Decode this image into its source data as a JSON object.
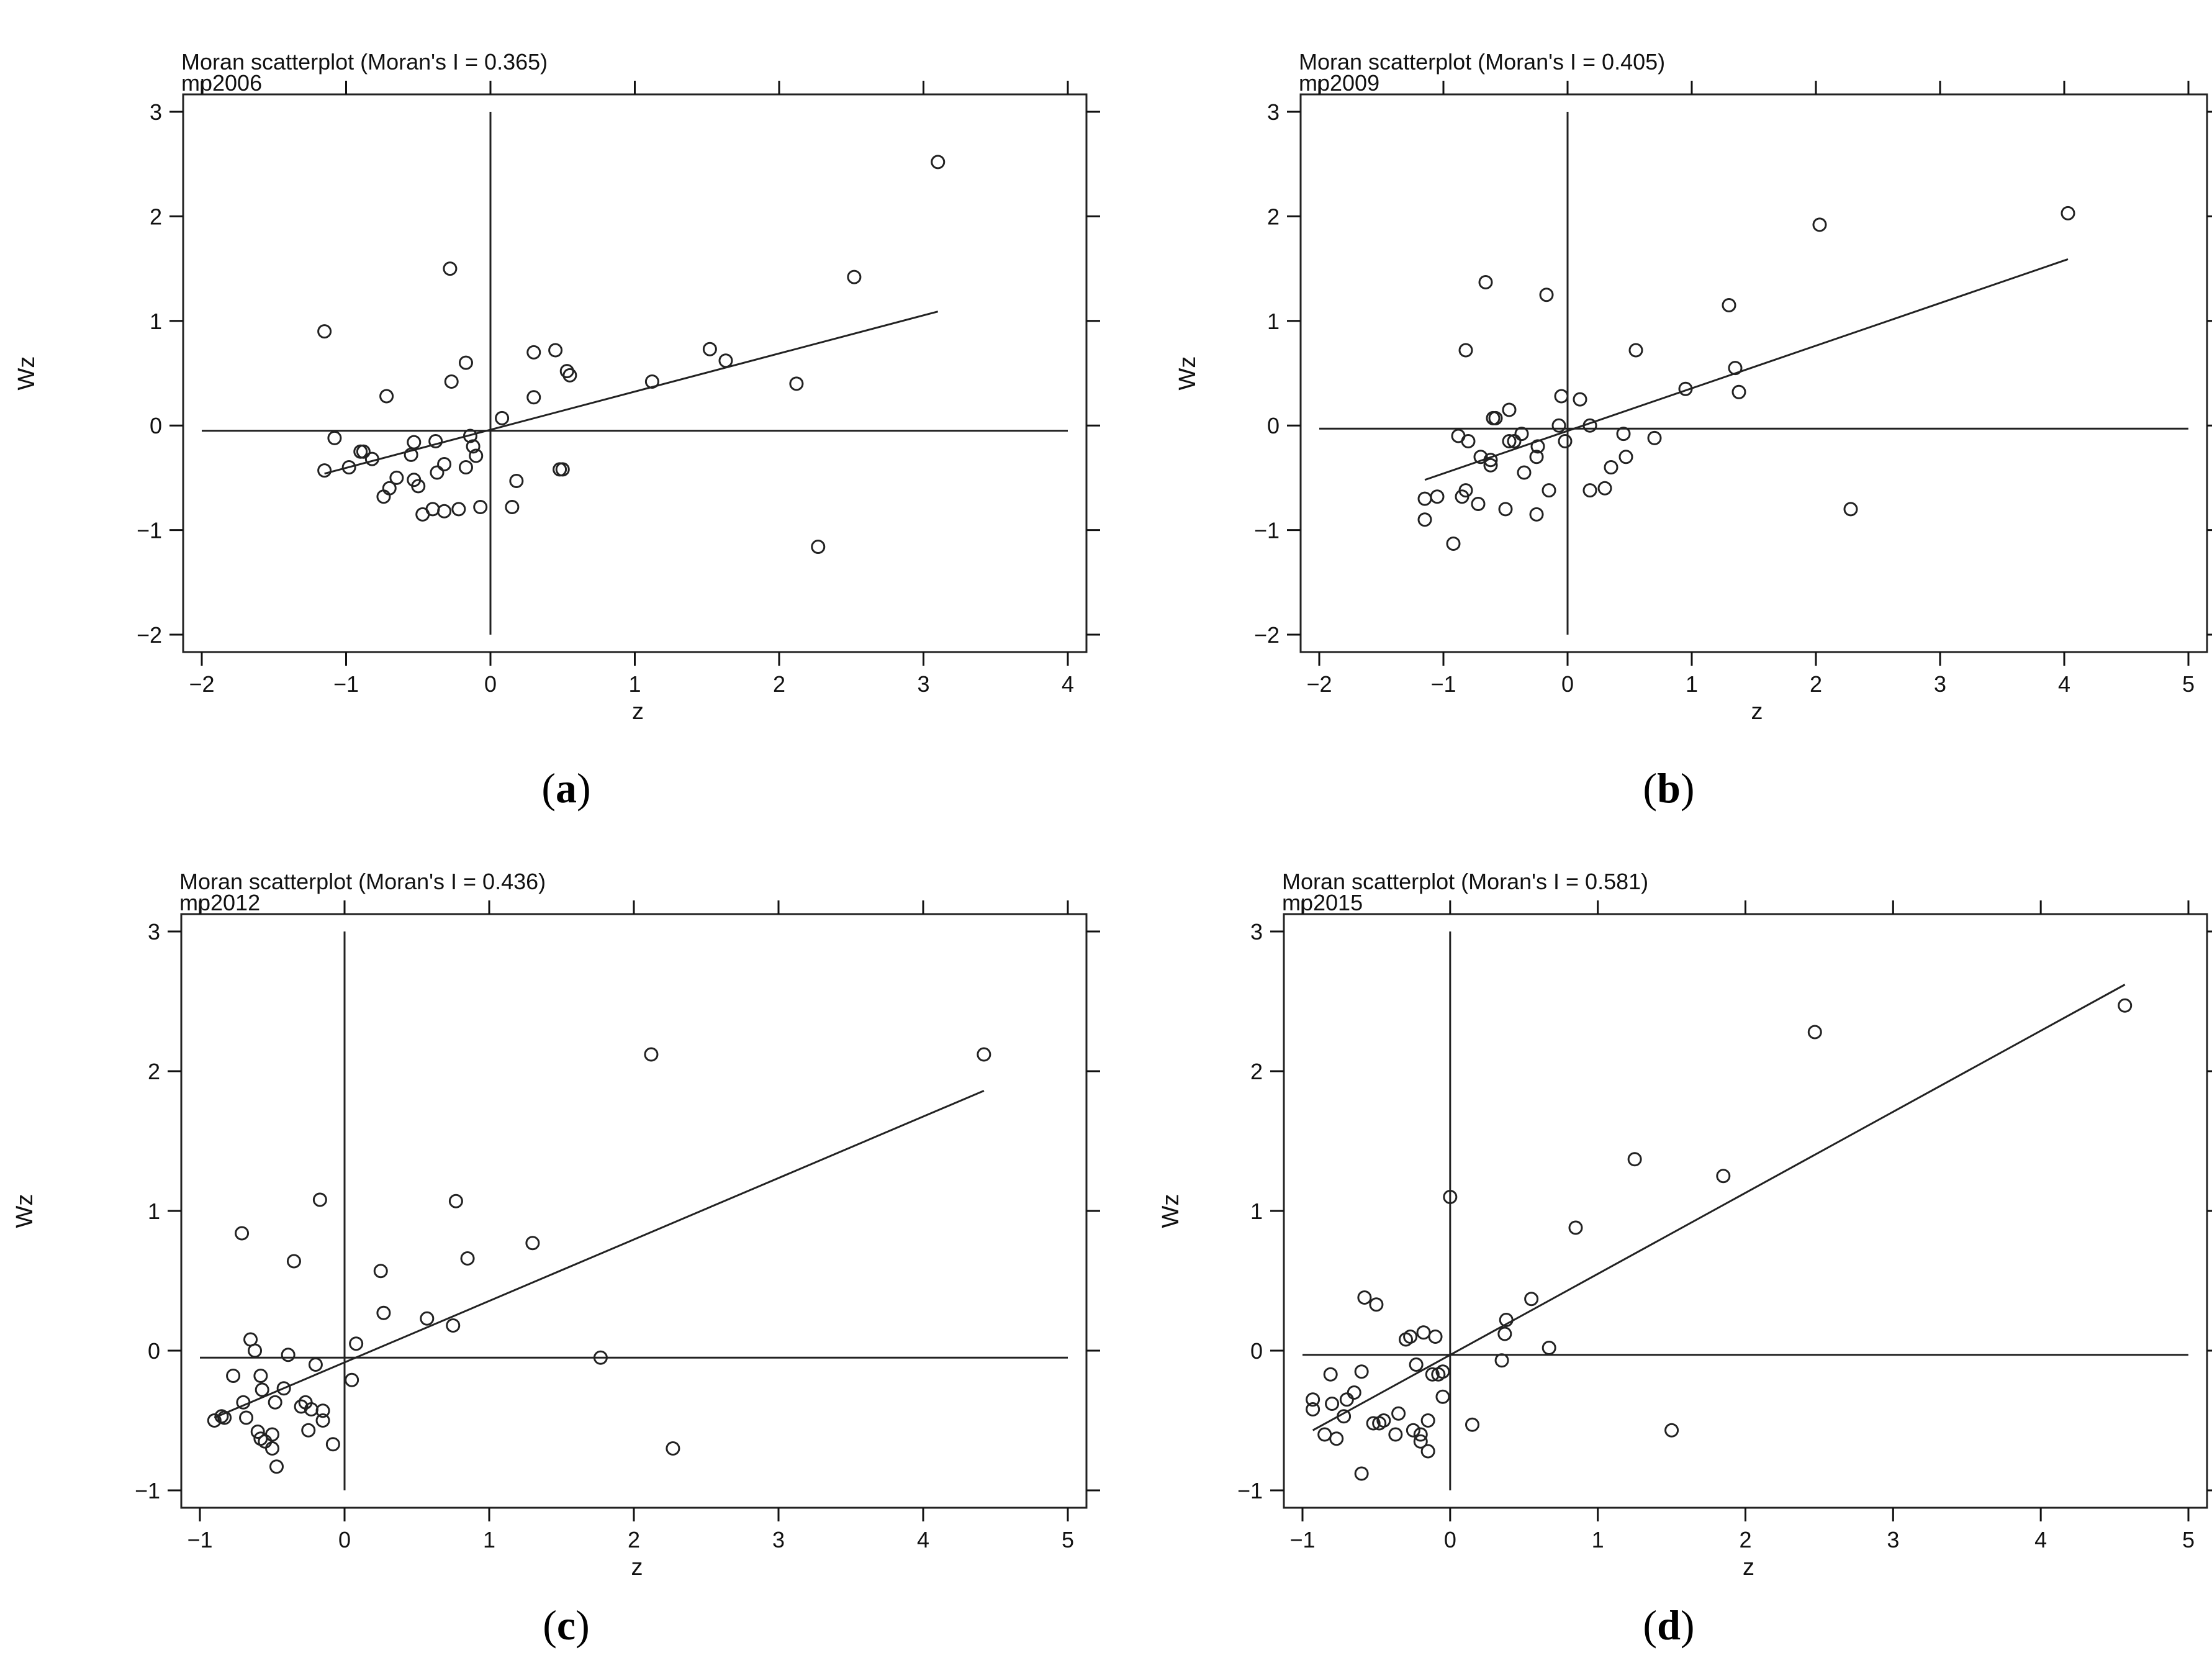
{
  "chart_data": [
    {
      "type": "scatter",
      "title": "Moran scatterplot (Moran's I = 0.365)",
      "subtitle": "mp2006",
      "xlabel": "z",
      "ylabel": "Wz",
      "caption_letter": "a",
      "xlim": [
        -2,
        4
      ],
      "ylim": [
        -2,
        3
      ],
      "xticks": [
        -2,
        -1,
        0,
        1,
        2,
        3,
        4
      ],
      "yticks": [
        -2,
        -1,
        0,
        1,
        2,
        3
      ],
      "moran_i": 0.365,
      "points": [
        [
          -1.15,
          0.9
        ],
        [
          -1.15,
          -0.43
        ],
        [
          -1.08,
          -0.12
        ],
        [
          -0.98,
          -0.4
        ],
        [
          -0.9,
          -0.25
        ],
        [
          -0.88,
          -0.25
        ],
        [
          -0.82,
          -0.32
        ],
        [
          -0.72,
          0.28
        ],
        [
          -0.74,
          -0.68
        ],
        [
          -0.7,
          -0.6
        ],
        [
          -0.65,
          -0.5
        ],
        [
          -0.55,
          -0.28
        ],
        [
          -0.53,
          -0.16
        ],
        [
          -0.53,
          -0.52
        ],
        [
          -0.5,
          -0.58
        ],
        [
          -0.47,
          -0.85
        ],
        [
          -0.4,
          -0.8
        ],
        [
          -0.38,
          -0.15
        ],
        [
          -0.37,
          -0.45
        ],
        [
          -0.32,
          -0.37
        ],
        [
          -0.32,
          -0.82
        ],
        [
          -0.28,
          1.5
        ],
        [
          -0.27,
          0.42
        ],
        [
          -0.22,
          -0.8
        ],
        [
          -0.17,
          0.6
        ],
        [
          -0.17,
          -0.4
        ],
        [
          -0.14,
          -0.1
        ],
        [
          -0.12,
          -0.2
        ],
        [
          -0.1,
          -0.29
        ],
        [
          -0.07,
          -0.78
        ],
        [
          0.08,
          0.07
        ],
        [
          0.15,
          -0.78
        ],
        [
          0.18,
          -0.53
        ],
        [
          0.3,
          0.7
        ],
        [
          0.3,
          0.27
        ],
        [
          0.45,
          0.72
        ],
        [
          0.48,
          -0.42
        ],
        [
          0.5,
          -0.42
        ],
        [
          0.53,
          0.52
        ],
        [
          0.55,
          0.48
        ],
        [
          1.12,
          0.42
        ],
        [
          1.52,
          0.73
        ],
        [
          1.63,
          0.62
        ],
        [
          2.12,
          0.4
        ],
        [
          2.27,
          -1.16
        ],
        [
          2.52,
          1.42
        ],
        [
          3.1,
          2.52
        ]
      ],
      "fit_line": [
        [
          -1.15,
          -0.46
        ],
        [
          3.1,
          1.09
        ]
      ],
      "h_ref": -0.05,
      "v_ref": 0,
      "v_ref_range": [
        -2,
        3
      ],
      "h_ref_range": [
        -2,
        4
      ]
    },
    {
      "type": "scatter",
      "title": "Moran scatterplot (Moran's I = 0.405)",
      "subtitle": "mp2009",
      "xlabel": "z",
      "ylabel": "Wz",
      "caption_letter": "b",
      "xlim": [
        -2,
        5
      ],
      "ylim": [
        -2,
        3
      ],
      "xticks": [
        -2,
        -1,
        0,
        1,
        2,
        3,
        4,
        5
      ],
      "yticks": [
        -2,
        -1,
        0,
        1,
        2,
        3
      ],
      "moran_i": 0.405,
      "points": [
        [
          -1.15,
          -0.7
        ],
        [
          -1.15,
          -0.9
        ],
        [
          -1.05,
          -0.68
        ],
        [
          -0.92,
          -1.13
        ],
        [
          -0.88,
          -0.1
        ],
        [
          -0.85,
          -0.68
        ],
        [
          -0.82,
          0.72
        ],
        [
          -0.82,
          -0.62
        ],
        [
          -0.8,
          -0.15
        ],
        [
          -0.72,
          -0.75
        ],
        [
          -0.7,
          -0.3
        ],
        [
          -0.66,
          1.37
        ],
        [
          -0.62,
          -0.33
        ],
        [
          -0.62,
          -0.38
        ],
        [
          -0.6,
          0.07
        ],
        [
          -0.58,
          0.07
        ],
        [
          -0.5,
          -0.8
        ],
        [
          -0.47,
          0.15
        ],
        [
          -0.47,
          -0.15
        ],
        [
          -0.43,
          -0.15
        ],
        [
          -0.37,
          -0.08
        ],
        [
          -0.35,
          -0.45
        ],
        [
          -0.25,
          -0.85
        ],
        [
          -0.25,
          -0.3
        ],
        [
          -0.24,
          -0.2
        ],
        [
          -0.17,
          1.25
        ],
        [
          -0.15,
          -0.62
        ],
        [
          -0.07,
          0.0
        ],
        [
          -0.05,
          0.28
        ],
        [
          -0.02,
          -0.15
        ],
        [
          0.1,
          0.25
        ],
        [
          0.18,
          0.0
        ],
        [
          0.18,
          -0.62
        ],
        [
          0.3,
          -0.6
        ],
        [
          0.35,
          -0.4
        ],
        [
          0.45,
          -0.08
        ],
        [
          0.47,
          -0.3
        ],
        [
          0.55,
          0.72
        ],
        [
          0.7,
          -0.12
        ],
        [
          0.95,
          0.35
        ],
        [
          1.3,
          1.15
        ],
        [
          1.35,
          0.55
        ],
        [
          1.38,
          0.32
        ],
        [
          2.03,
          1.92
        ],
        [
          2.28,
          -0.8
        ],
        [
          4.03,
          2.03
        ]
      ],
      "fit_line": [
        [
          -1.15,
          -0.52
        ],
        [
          4.03,
          1.59
        ]
      ],
      "h_ref": -0.03,
      "v_ref": 0,
      "v_ref_range": [
        -2,
        3
      ],
      "h_ref_range": [
        -2,
        5
      ]
    },
    {
      "type": "scatter",
      "title": "Moran scatterplot (Moran's I = 0.436)",
      "subtitle": "mp2012",
      "xlabel": "z",
      "ylabel": "Wz",
      "caption_letter": "c",
      "xlim": [
        -1,
        5
      ],
      "ylim": [
        -1,
        3
      ],
      "xticks": [
        -1,
        0,
        1,
        2,
        3,
        4,
        5
      ],
      "yticks": [
        -1,
        0,
        1,
        2,
        3
      ],
      "moran_i": 0.436,
      "points": [
        [
          -0.9,
          -0.5
        ],
        [
          -0.85,
          -0.47
        ],
        [
          -0.83,
          -0.48
        ],
        [
          -0.77,
          -0.18
        ],
        [
          -0.71,
          0.84
        ],
        [
          -0.7,
          -0.37
        ],
        [
          -0.68,
          -0.48
        ],
        [
          -0.65,
          0.08
        ],
        [
          -0.62,
          0.0
        ],
        [
          -0.6,
          -0.58
        ],
        [
          -0.58,
          -0.18
        ],
        [
          -0.58,
          -0.63
        ],
        [
          -0.57,
          -0.28
        ],
        [
          -0.55,
          -0.65
        ],
        [
          -0.5,
          -0.7
        ],
        [
          -0.5,
          -0.6
        ],
        [
          -0.48,
          -0.37
        ],
        [
          -0.47,
          -0.83
        ],
        [
          -0.42,
          -0.27
        ],
        [
          -0.39,
          -0.03
        ],
        [
          -0.35,
          0.64
        ],
        [
          -0.3,
          -0.4
        ],
        [
          -0.27,
          -0.37
        ],
        [
          -0.25,
          -0.57
        ],
        [
          -0.23,
          -0.42
        ],
        [
          -0.2,
          -0.1
        ],
        [
          -0.17,
          1.08
        ],
        [
          -0.15,
          -0.43
        ],
        [
          -0.15,
          -0.5
        ],
        [
          -0.08,
          -0.67
        ],
        [
          0.05,
          -0.21
        ],
        [
          0.08,
          0.05
        ],
        [
          0.25,
          0.57
        ],
        [
          0.27,
          0.27
        ],
        [
          0.57,
          0.23
        ],
        [
          0.75,
          0.18
        ],
        [
          0.77,
          1.07
        ],
        [
          0.85,
          0.66
        ],
        [
          1.3,
          0.77
        ],
        [
          1.77,
          -0.05
        ],
        [
          2.12,
          2.12
        ],
        [
          2.27,
          -0.7
        ],
        [
          4.42,
          2.12
        ]
      ],
      "fit_line": [
        [
          -0.9,
          -0.48
        ],
        [
          4.42,
          1.86
        ]
      ],
      "h_ref": -0.05,
      "v_ref": 0,
      "v_ref_range": [
        -1,
        3
      ],
      "h_ref_range": [
        -1,
        5
      ]
    },
    {
      "type": "scatter",
      "title": "Moran scatterplot (Moran's I = 0.581)",
      "subtitle": "mp2015",
      "xlabel": "z",
      "ylabel": "Wz",
      "caption_letter": "d",
      "xlim": [
        -1,
        5
      ],
      "ylim": [
        -1,
        3
      ],
      "xticks": [
        -1,
        0,
        1,
        2,
        3,
        4,
        5
      ],
      "yticks": [
        -1,
        0,
        1,
        2,
        3
      ],
      "moran_i": 0.581,
      "points": [
        [
          -0.93,
          -0.35
        ],
        [
          -0.93,
          -0.42
        ],
        [
          -0.85,
          -0.6
        ],
        [
          -0.81,
          -0.17
        ],
        [
          -0.8,
          -0.38
        ],
        [
          -0.77,
          -0.63
        ],
        [
          -0.72,
          -0.47
        ],
        [
          -0.7,
          -0.35
        ],
        [
          -0.65,
          -0.3
        ],
        [
          -0.6,
          -0.15
        ],
        [
          -0.6,
          -0.88
        ],
        [
          -0.58,
          0.38
        ],
        [
          -0.52,
          -0.52
        ],
        [
          -0.5,
          0.33
        ],
        [
          -0.48,
          -0.52
        ],
        [
          -0.45,
          -0.5
        ],
        [
          -0.37,
          -0.6
        ],
        [
          -0.35,
          -0.45
        ],
        [
          -0.3,
          0.08
        ],
        [
          -0.27,
          0.1
        ],
        [
          -0.25,
          -0.57
        ],
        [
          -0.23,
          -0.1
        ],
        [
          -0.2,
          -0.6
        ],
        [
          -0.2,
          -0.65
        ],
        [
          -0.18,
          0.13
        ],
        [
          -0.15,
          -0.5
        ],
        [
          -0.15,
          -0.72
        ],
        [
          -0.12,
          -0.17
        ],
        [
          -0.1,
          0.1
        ],
        [
          -0.08,
          -0.17
        ],
        [
          -0.05,
          -0.33
        ],
        [
          -0.05,
          -0.15
        ],
        [
          0.0,
          1.1
        ],
        [
          0.15,
          -0.53
        ],
        [
          0.35,
          -0.07
        ],
        [
          0.37,
          0.12
        ],
        [
          0.38,
          0.22
        ],
        [
          0.55,
          0.37
        ],
        [
          0.67,
          0.02
        ],
        [
          0.85,
          0.88
        ],
        [
          1.25,
          1.37
        ],
        [
          1.5,
          -0.57
        ],
        [
          1.85,
          1.25
        ],
        [
          2.47,
          2.28
        ],
        [
          4.57,
          2.47
        ]
      ],
      "fit_line": [
        [
          -0.93,
          -0.57
        ],
        [
          4.57,
          2.62
        ]
      ],
      "h_ref": -0.03,
      "v_ref": 0,
      "v_ref_range": [
        -1,
        3
      ],
      "h_ref_range": [
        -1,
        5
      ]
    }
  ]
}
